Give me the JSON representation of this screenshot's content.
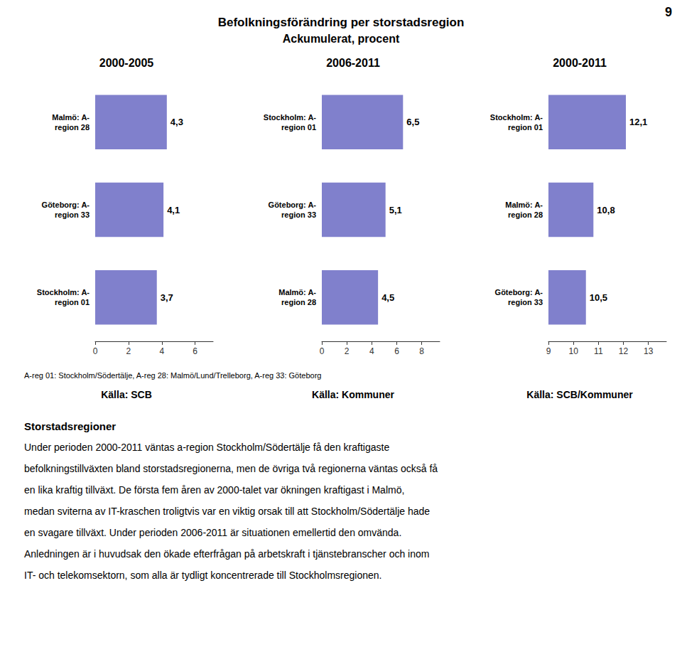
{
  "title": "Befolkningsförändring per storstadsregion",
  "subtitle": "Ackumulerat, procent",
  "annotations": [
    "9",
    "A-reg 01: Stockholm/Södertälje, A-reg 28: Malmö/Lund/Trelleborg, A-reg 33: Göteborg",
    "Storstadsregioner",
    "Under perioden 2000-2011 väntas a-region Stockholm/Södertälje få den kraftigaste",
    "befolkningstillväxten bland storstadsregionerna, men de övriga två regionerna väntas också få",
    "en lika kraftig tillväxt. De första fem åren av 2000-talet var ökningen kraftigast i Malmö,",
    "medan sviterna av IT-kraschen troligtvis var en viktig orsak till att Stockholm/Södertälje hade",
    "en svagare tillväxt. Under perioden 2006-2011 är situationen emellertid den omvända.",
    "Anledningen är i huvudsak den ökade efterfrågan på arbetskraft i tjänstebranscher och inom",
    "IT- och telekomsektorn, som alla är tydligt koncentrerade till Stockholmsregionen."
  ],
  "chart_data": [
    {
      "type": "bar",
      "orientation": "horizontal",
      "title": "2000-2005",
      "annotations": [
        "Källa: SCB"
      ],
      "categories": [
        "Malmö: A-\nregion 28",
        "Göteborg: A-\nregion 33",
        "Stockholm: A-\nregion 01"
      ],
      "values": [
        4.3,
        4.1,
        3.7
      ],
      "value_labels": [
        "4,3",
        "4,1",
        "3,7"
      ],
      "data_labels": true,
      "color": "#8080cc",
      "xlim": [
        0,
        7.08
      ],
      "xticks": [
        0,
        2,
        4,
        6
      ],
      "grid": false
    },
    {
      "type": "bar",
      "orientation": "horizontal",
      "title": "2006-2011",
      "annotations": [
        "Källa: Kommuner"
      ],
      "categories": [
        "Stockholm: A-\nregion 01",
        "Göteborg: A-\nregion 33",
        "Malmö: A-\nregion 28"
      ],
      "values": [
        6.5,
        5.1,
        4.5
      ],
      "value_labels": [
        "6,5",
        "5,1",
        "4,5"
      ],
      "data_labels": true,
      "color": "#8080cc",
      "xlim": [
        0,
        9.44
      ],
      "xticks": [
        0,
        2,
        4,
        6,
        8
      ],
      "grid": false
    },
    {
      "type": "bar",
      "orientation": "horizontal",
      "title": "2000-2011",
      "annotations": [
        "Källa: SCB/Kommuner"
      ],
      "categories": [
        "Stockholm: A-\nregion 01",
        "Malmö: A-\nregion 28",
        "Göteborg: A-\nregion 33"
      ],
      "values": [
        12.1,
        10.8,
        10.5
      ],
      "value_labels": [
        "12,1",
        "10,8",
        "10,5"
      ],
      "data_labels": true,
      "color": "#8080cc",
      "xlim": [
        9,
        13.72
      ],
      "xticks": [
        9,
        10,
        11,
        12,
        13
      ],
      "grid": false
    }
  ]
}
